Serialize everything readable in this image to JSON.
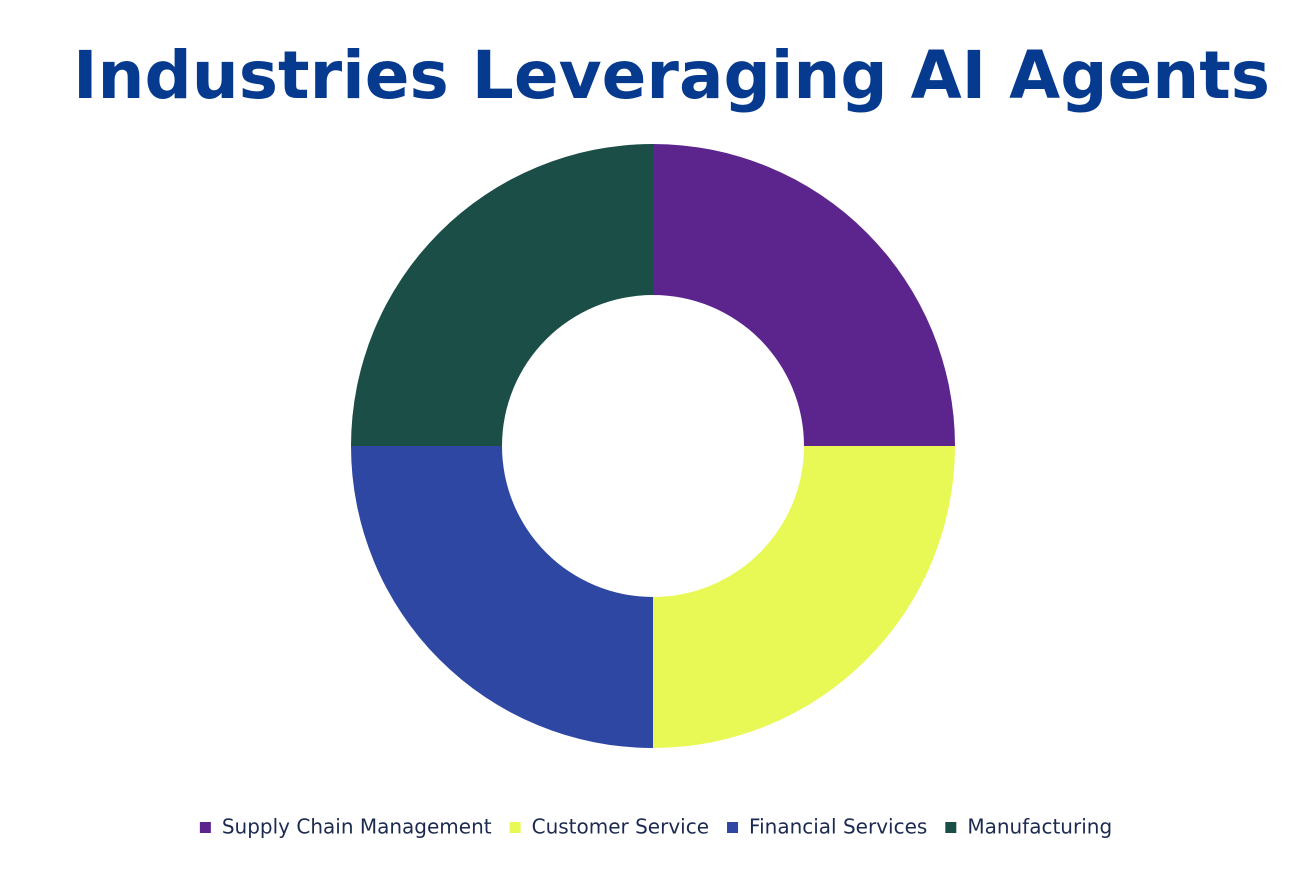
{
  "chart_data": {
    "type": "donut",
    "title": "Industries Leveraging AI Agents",
    "categories": [
      "Supply Chain Management",
      "Customer Service",
      "Financial Services",
      "Manufacturing"
    ],
    "values": [
      25,
      25,
      25,
      25
    ],
    "colors": [
      "#5c258d",
      "#e8f956",
      "#2e47a3",
      "#1b4e47"
    ],
    "legend": "bottom"
  }
}
